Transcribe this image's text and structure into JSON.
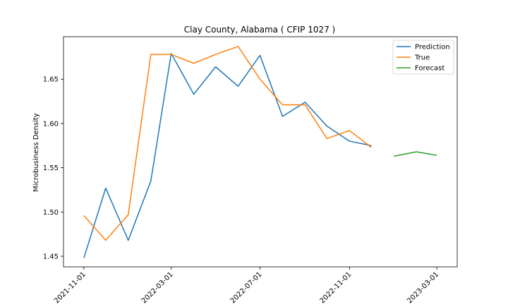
{
  "chart_data": {
    "type": "line",
    "title": "Clay County, Alabama ( CFIP 1027 )",
    "xlabel": "",
    "ylabel": "Microbusiness Density",
    "x_ticks": [
      "2021-11-01",
      "2022-03-01",
      "2022-07-01",
      "2022-11-01",
      "2023-03-01"
    ],
    "y_ticks": [
      1.45,
      1.5,
      1.55,
      1.6,
      1.65
    ],
    "xlim": [
      "2021-10-04",
      "2023-03-29"
    ],
    "ylim": [
      1.438,
      1.698
    ],
    "legend_position": "top-right",
    "grid": false,
    "series": [
      {
        "name": "Prediction",
        "color": "#1f77b4",
        "x": [
          "2021-11-01",
          "2021-12-01",
          "2022-01-01",
          "2022-02-01",
          "2022-03-01",
          "2022-04-01",
          "2022-05-01",
          "2022-06-01",
          "2022-07-01",
          "2022-08-01",
          "2022-09-01",
          "2022-10-01",
          "2022-11-01",
          "2022-12-01"
        ],
        "y": [
          1.448,
          1.527,
          1.468,
          1.535,
          1.679,
          1.633,
          1.664,
          1.642,
          1.677,
          1.608,
          1.624,
          1.597,
          1.58,
          1.575
        ]
      },
      {
        "name": "True",
        "color": "#ff7f0e",
        "x": [
          "2021-11-01",
          "2021-12-01",
          "2022-01-01",
          "2022-02-01",
          "2022-03-01",
          "2022-04-01",
          "2022-05-01",
          "2022-06-01",
          "2022-07-01",
          "2022-08-01",
          "2022-09-01",
          "2022-10-01",
          "2022-11-01",
          "2022-12-01"
        ],
        "y": [
          1.496,
          1.468,
          1.497,
          1.678,
          1.678,
          1.668,
          1.678,
          1.687,
          1.65,
          1.621,
          1.621,
          1.583,
          1.592,
          1.573
        ]
      },
      {
        "name": "Forecast",
        "color": "#2ca02c",
        "x": [
          "2023-01-01",
          "2023-02-01",
          "2023-03-01"
        ],
        "y": [
          1.563,
          1.568,
          1.564
        ]
      }
    ]
  }
}
